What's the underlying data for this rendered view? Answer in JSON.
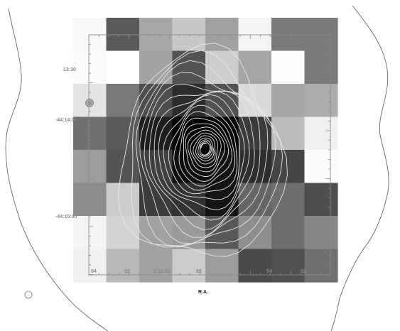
{
  "figure": {
    "x_axis_label": "R.A.",
    "x_tick_labels": [
      "04",
      "02",
      "3:11:00",
      "58",
      "54",
      "52"
    ],
    "y_tick_labels": [
      "13:30",
      "-44:14:00",
      "-44:15:00"
    ],
    "marker_label": "5"
  },
  "grid": {
    "cols": 8,
    "rows": 8,
    "gray": [
      [
        "#f8f8f8",
        "#5a5a5a",
        "#a8a8a8",
        "#c8c8c8",
        "#a0a0a0",
        "#f4f4f4",
        "#7a7a7a",
        "#7a7a7a"
      ],
      [
        "#fbfbfb",
        "#ffffff",
        "#a2a2a2",
        "#535353",
        "#cdcdcd",
        "#a5a5a5",
        "#fdfdfd",
        "#7a7a7a"
      ],
      [
        "#e4e4e4",
        "#787878",
        "#4e4e4e",
        "#2c2c2c",
        "#525252",
        "#dadada",
        "#a6a6a6",
        "#adadad"
      ],
      [
        "#707070",
        "#5a5a5a",
        "#1e1e1e",
        "#000000",
        "#000000",
        "#3a3a3a",
        "#bbbbbb",
        "#f0f0f0"
      ],
      [
        "#9c9c9c",
        "#545454",
        "#3f3f3f",
        "#0e0e0e",
        "#141414",
        "#2e2e2e",
        "#454545",
        "#fcfcfc"
      ],
      [
        "#8c8c8c",
        "#cbcbcb",
        "#3b3b3b",
        "#333333",
        "#151515",
        "#656565",
        "#6e6e6e",
        "#4e4e4e"
      ],
      [
        "#f4f4f4",
        "#d4d4d4",
        "#a1a1a1",
        "#9a9a9a",
        "#585858",
        "#8e8e8e",
        "#6e6e6e",
        "#878787"
      ],
      [
        "#f0f0f0",
        "#b8b8b8",
        "#a2a2a2",
        "#cbcbcb",
        "#9c9c9c",
        "#4a4a4a",
        "#505050",
        "#707070"
      ]
    ]
  },
  "contours": {
    "levels": 22,
    "color": "#e8e8e8"
  }
}
